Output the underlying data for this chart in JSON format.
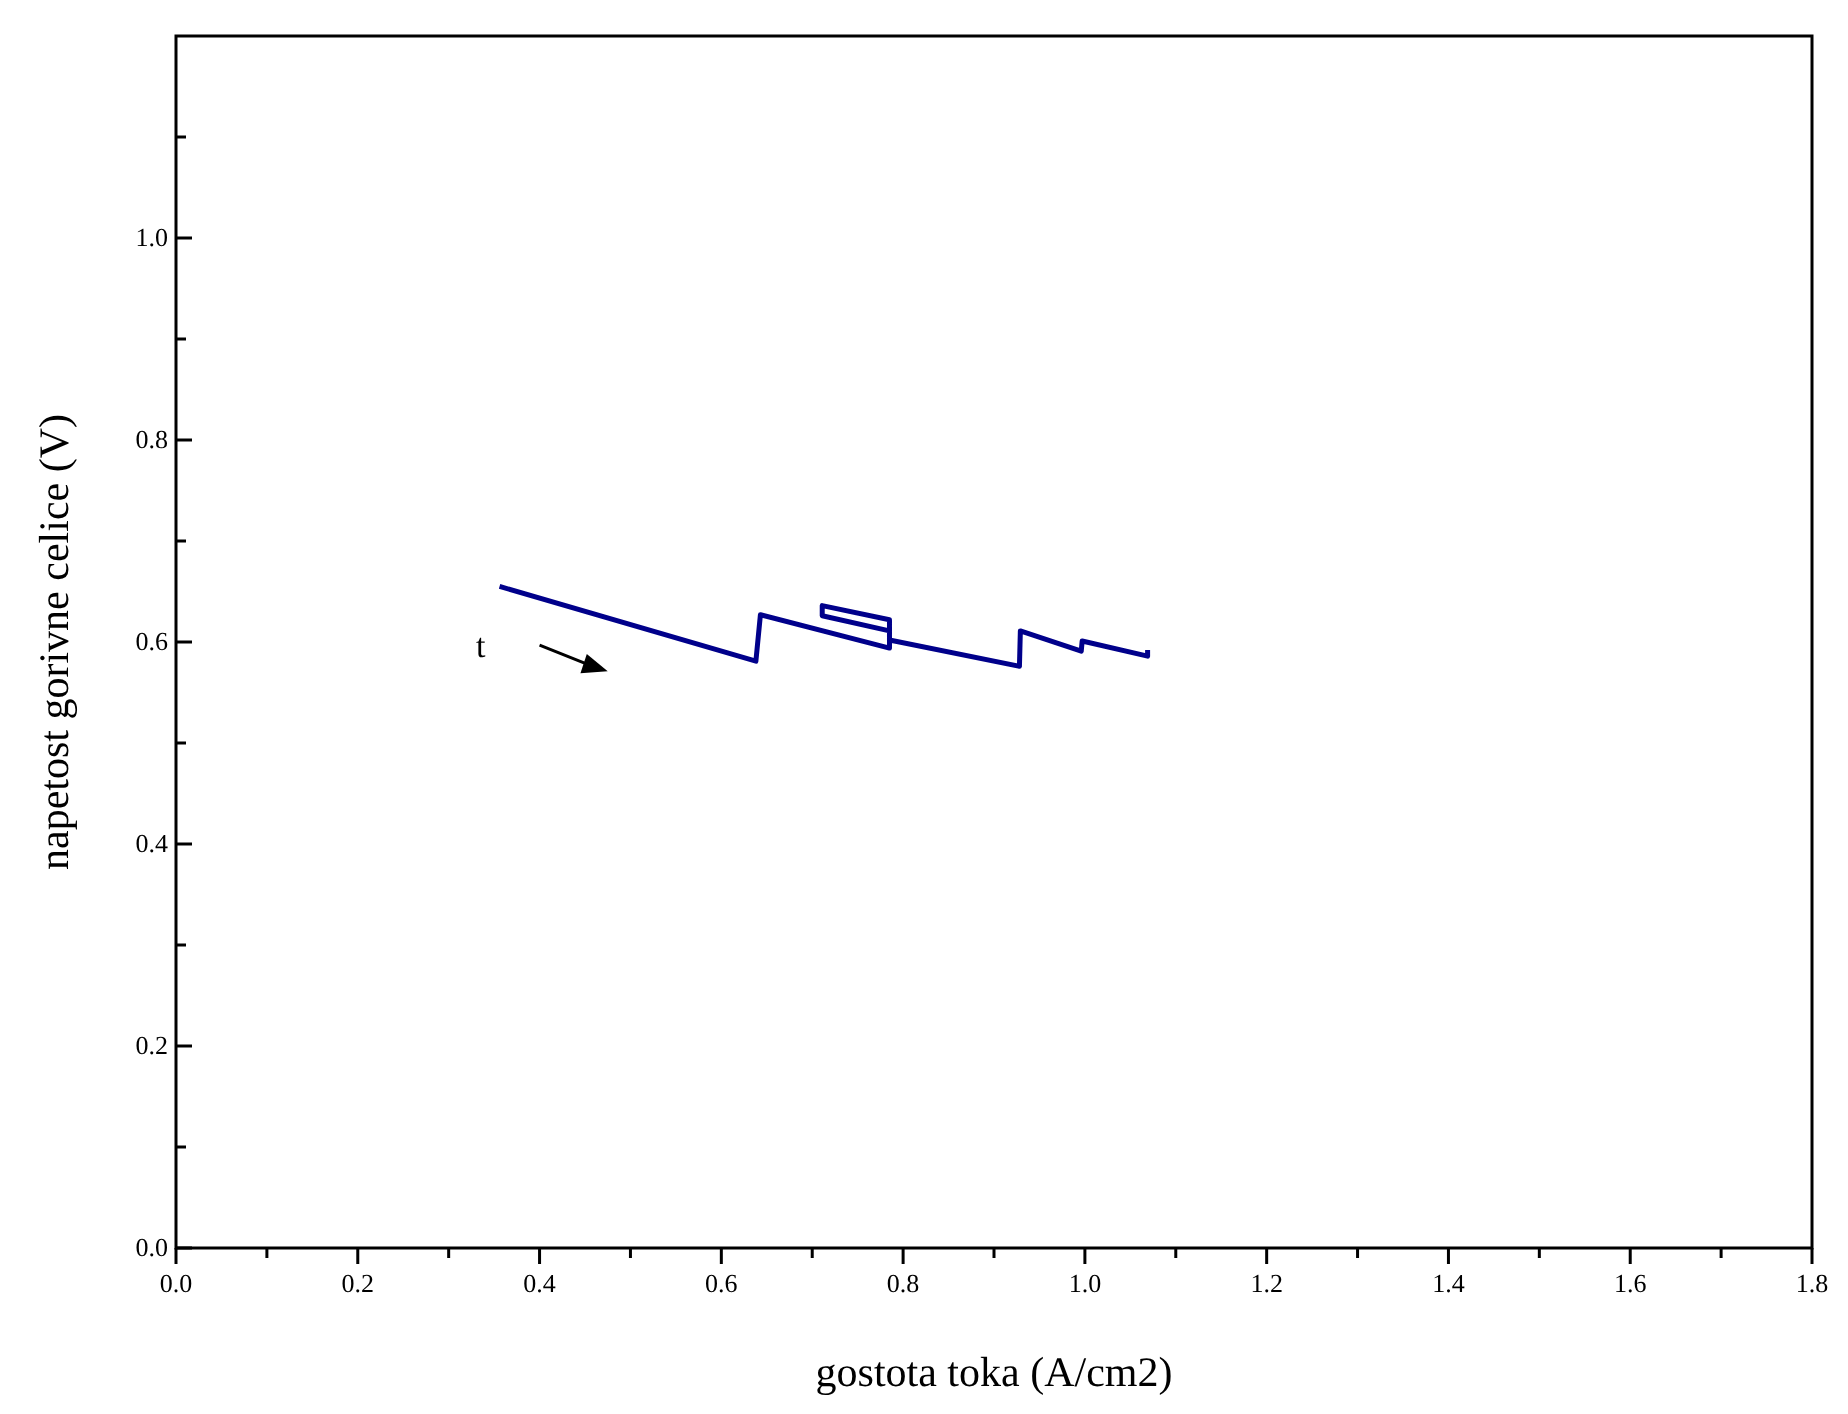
{
  "chart_data": {
    "type": "line",
    "xlabel": "gostota toka (A/cm2)",
    "ylabel": "napetost gorivne celice (V)",
    "annotations": [
      "t"
    ],
    "xlim": [
      0,
      1.8
    ],
    "ylim": [
      0,
      1.2
    ],
    "xticks": [
      {
        "value": 0,
        "label": "0.0"
      },
      {
        "value": 0.1,
        "label": null
      },
      {
        "value": 0.2,
        "label": "0.2"
      },
      {
        "value": 0.3,
        "label": null
      },
      {
        "value": 0.4,
        "label": "0.4"
      },
      {
        "value": 0.5,
        "label": null
      },
      {
        "value": 0.6,
        "label": "0.6"
      },
      {
        "value": 0.7,
        "label": null
      },
      {
        "value": 0.8,
        "label": "0.8"
      },
      {
        "value": 0.9,
        "label": null
      },
      {
        "value": 1,
        "label": "1.0"
      },
      {
        "value": 1.1,
        "label": null
      },
      {
        "value": 1.2,
        "label": "1.2"
      },
      {
        "value": 1.3,
        "label": null
      },
      {
        "value": 1.4,
        "label": "1.4"
      },
      {
        "value": 1.5,
        "label": null
      },
      {
        "value": 1.6,
        "label": "1.6"
      },
      {
        "value": 1.7,
        "label": null
      },
      {
        "value": 1.8,
        "label": "1.8"
      }
    ],
    "yticks": [
      {
        "value": 0,
        "label": "0.0"
      },
      {
        "value": 0.1,
        "label": null
      },
      {
        "value": 0.2,
        "label": "0.2"
      },
      {
        "value": 0.3,
        "label": null
      },
      {
        "value": 0.4,
        "label": "0.4"
      },
      {
        "value": 0.5,
        "label": null
      },
      {
        "value": 0.6,
        "label": "0.6"
      },
      {
        "value": 0.7,
        "label": null
      },
      {
        "value": 0.8,
        "label": "0.8"
      },
      {
        "value": 0.9,
        "label": null
      },
      {
        "value": 1,
        "label": "1.0"
      },
      {
        "value": 1.1,
        "label": null
      }
    ],
    "grid": false,
    "line_style": "solid",
    "series": [
      {
        "color": "#00008b",
        "x": [
          0.356,
          0.638,
          0.643,
          0.785,
          0.785,
          0.711,
          0.711,
          0.785,
          0.785,
          0.928,
          0.929,
          0.996,
          0.997,
          1.069,
          1.069
        ],
        "values": [
          0.655,
          0.581,
          0.627,
          0.594,
          0.622,
          0.636,
          0.626,
          0.611,
          0.602,
          0.576,
          0.611,
          0.591,
          0.601,
          0.586,
          0.592
        ]
      }
    ]
  }
}
